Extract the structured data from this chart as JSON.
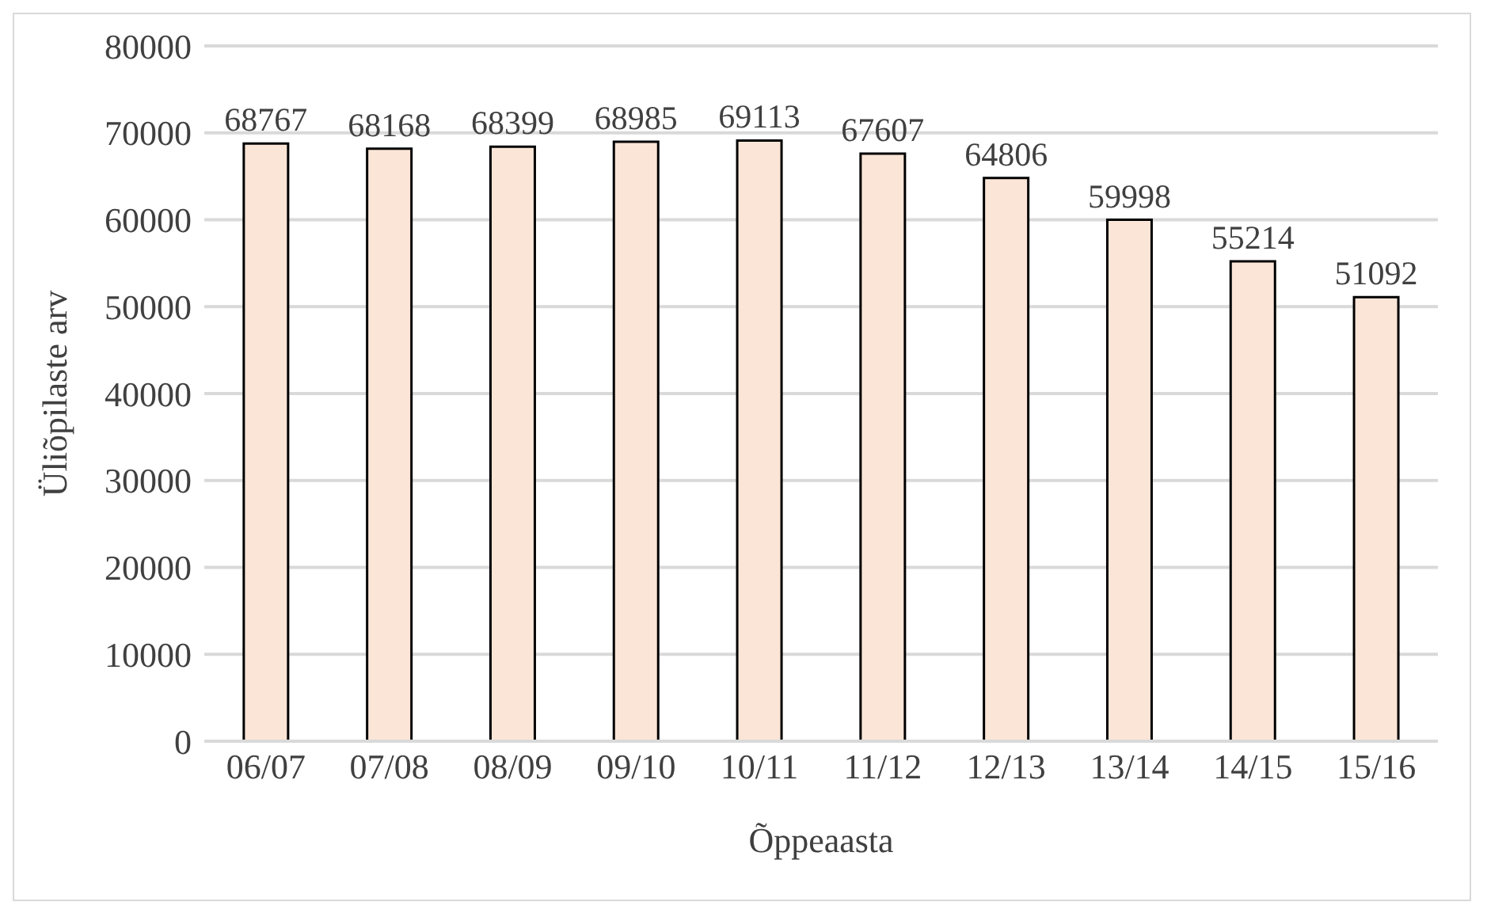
{
  "chart_data": {
    "type": "bar",
    "xlabel": "Õppeaasta",
    "ylabel": "Üliõpilaste arv",
    "categories": [
      "06/07",
      "07/08",
      "08/09",
      "09/10",
      "10/11",
      "11/12",
      "12/13",
      "13/14",
      "14/15",
      "15/16"
    ],
    "values": [
      68767,
      68168,
      68399,
      68985,
      69113,
      67607,
      64806,
      59998,
      55214,
      51092
    ],
    "color": "#fbe5d6",
    "ylim": [
      0,
      80000
    ],
    "yticks": [
      0,
      10000,
      20000,
      30000,
      40000,
      50000,
      60000,
      70000,
      80000
    ],
    "grid": "y",
    "data_labels": true
  }
}
